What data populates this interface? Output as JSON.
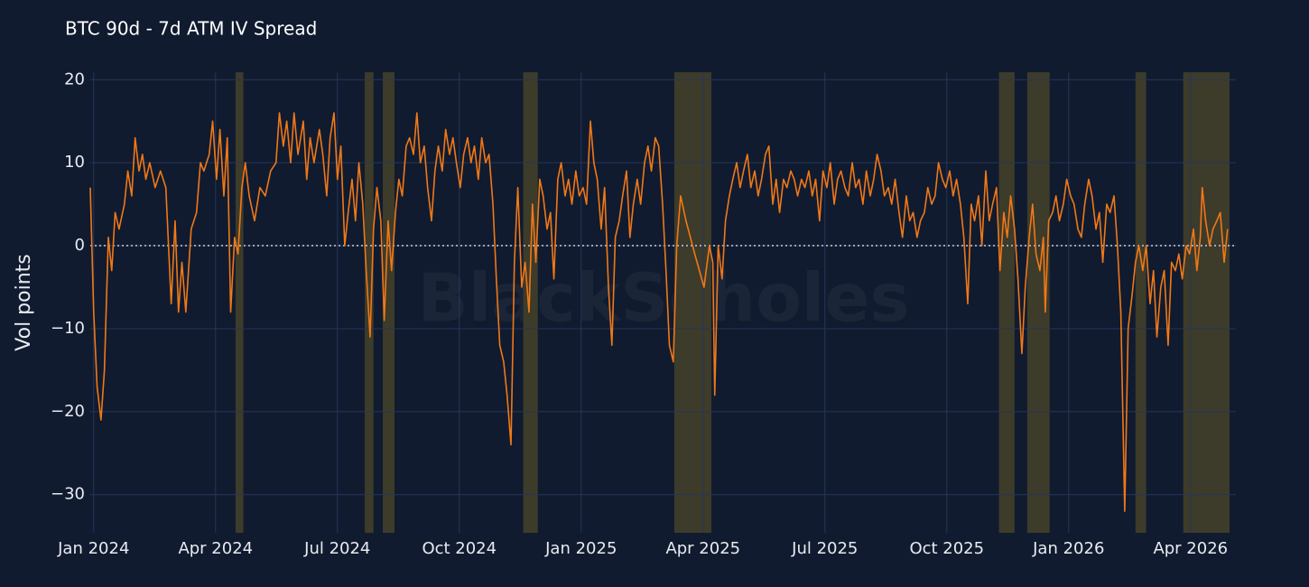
{
  "chart_data": {
    "type": "line",
    "title": "BTC 90d - 7d ATM IV Spread",
    "y_label": "Vol points",
    "watermark": "BlackScholes",
    "color": "#f07818",
    "band_color": "#3d3b2a",
    "grid": true,
    "zero_line": 0,
    "xlim": [
      2023.993,
      2026.343
    ],
    "ylim": [
      -34.6,
      20.9
    ],
    "xticks": [
      {
        "value": 2024,
        "label": "Jan 2024"
      },
      {
        "value": 2024.25,
        "label": "Apr 2024"
      },
      {
        "value": 2024.5,
        "label": "Jul 2024"
      },
      {
        "value": 2024.75,
        "label": "Oct 2024"
      },
      {
        "value": 2025,
        "label": "Jan 2025"
      },
      {
        "value": 2025.25,
        "label": "Apr 2025"
      },
      {
        "value": 2025.5,
        "label": "Jul 2025"
      },
      {
        "value": 2025.75,
        "label": "Oct 2025"
      },
      {
        "value": 2026,
        "label": "Jan 2026"
      },
      {
        "value": 2026.25,
        "label": "Apr 2026"
      }
    ],
    "yticks": [
      {
        "value": -30,
        "label": "−30"
      },
      {
        "value": -20,
        "label": "−20"
      },
      {
        "value": -10,
        "label": "−10"
      },
      0,
      10,
      20
    ],
    "shaded_ranges": [
      [
        2024.291,
        2024.307
      ],
      [
        2024.556,
        2024.574
      ],
      [
        2024.593,
        2024.617
      ],
      [
        2024.881,
        2024.911
      ],
      [
        2025.191,
        2025.267
      ],
      [
        2025.857,
        2025.889
      ],
      [
        2025.915,
        2025.961
      ],
      [
        2026.137,
        2026.159
      ],
      [
        2026.235,
        2026.33
      ]
    ],
    "x": [
      2023.993,
      2024.0,
      2024.007,
      2024.015,
      2024.022,
      2024.03,
      2024.037,
      2024.044,
      2024.052,
      2024.063,
      2024.07,
      2024.078,
      2024.085,
      2024.093,
      2024.1,
      2024.107,
      2024.115,
      2024.126,
      2024.137,
      2024.148,
      2024.159,
      2024.167,
      2024.174,
      2024.181,
      2024.189,
      2024.2,
      2024.211,
      2024.219,
      2024.226,
      2024.237,
      2024.244,
      2024.252,
      2024.259,
      2024.267,
      2024.274,
      2024.281,
      2024.289,
      2024.296,
      2024.304,
      2024.311,
      2024.319,
      2024.33,
      2024.341,
      2024.352,
      2024.363,
      2024.374,
      2024.381,
      2024.389,
      2024.396,
      2024.404,
      2024.411,
      2024.419,
      2024.43,
      2024.437,
      2024.444,
      2024.452,
      2024.463,
      2024.47,
      2024.478,
      2024.485,
      2024.493,
      2024.5,
      2024.507,
      2024.515,
      2024.522,
      2024.53,
      2024.537,
      2024.544,
      2024.552,
      2024.559,
      2024.567,
      2024.574,
      2024.581,
      2024.589,
      2024.596,
      2024.604,
      2024.611,
      2024.619,
      2024.626,
      2024.633,
      2024.641,
      2024.648,
      2024.656,
      2024.663,
      2024.67,
      2024.678,
      2024.685,
      2024.693,
      2024.7,
      2024.707,
      2024.715,
      2024.722,
      2024.73,
      2024.737,
      2024.744,
      2024.752,
      2024.759,
      2024.767,
      2024.774,
      2024.781,
      2024.789,
      2024.796,
      2024.804,
      2024.811,
      2024.819,
      2024.826,
      2024.833,
      2024.841,
      2024.848,
      2024.856,
      2024.863,
      2024.87,
      2024.878,
      2024.885,
      2024.893,
      2024.9,
      2024.907,
      2024.915,
      2024.922,
      2024.93,
      2024.937,
      2024.944,
      2024.952,
      2024.959,
      2024.967,
      2024.974,
      2024.981,
      2024.989,
      2024.996,
      2025.004,
      2025.011,
      2025.019,
      2025.026,
      2025.033,
      2025.041,
      2025.048,
      2025.056,
      2025.063,
      2025.07,
      2025.078,
      2025.085,
      2025.093,
      2025.1,
      2025.107,
      2025.115,
      2025.122,
      2025.13,
      2025.137,
      2025.144,
      2025.152,
      2025.159,
      2025.167,
      2025.174,
      2025.181,
      2025.189,
      2025.196,
      2025.204,
      2025.215,
      2025.233,
      2025.252,
      2025.263,
      2025.27,
      2025.274,
      2025.281,
      2025.289,
      2025.296,
      2025.304,
      2025.311,
      2025.319,
      2025.326,
      2025.333,
      2025.341,
      2025.348,
      2025.356,
      2025.363,
      2025.37,
      2025.378,
      2025.385,
      2025.393,
      2025.4,
      2025.407,
      2025.415,
      2025.422,
      2025.43,
      2025.437,
      2025.444,
      2025.452,
      2025.459,
      2025.467,
      2025.474,
      2025.481,
      2025.489,
      2025.496,
      2025.504,
      2025.511,
      2025.519,
      2025.526,
      2025.533,
      2025.541,
      2025.548,
      2025.556,
      2025.563,
      2025.57,
      2025.578,
      2025.585,
      2025.593,
      2025.6,
      2025.607,
      2025.615,
      2025.622,
      2025.63,
      2025.637,
      2025.644,
      2025.652,
      2025.659,
      2025.667,
      2025.674,
      2025.681,
      2025.689,
      2025.696,
      2025.704,
      2025.711,
      2025.719,
      2025.726,
      2025.733,
      2025.741,
      2025.748,
      2025.756,
      2025.763,
      2025.77,
      2025.778,
      2025.785,
      2025.793,
      2025.8,
      2025.807,
      2025.815,
      2025.822,
      2025.83,
      2025.837,
      2025.844,
      2025.852,
      2025.859,
      2025.867,
      2025.874,
      2025.881,
      2025.889,
      2025.896,
      2025.904,
      2025.911,
      2025.919,
      2025.926,
      2025.933,
      2025.941,
      2025.948,
      2025.952,
      2025.959,
      2025.967,
      2025.974,
      2025.981,
      2025.989,
      2025.996,
      2026.004,
      2026.011,
      2026.019,
      2026.026,
      2026.033,
      2026.041,
      2026.048,
      2026.056,
      2026.063,
      2026.07,
      2026.078,
      2026.085,
      2026.093,
      2026.1,
      2026.107,
      2026.115,
      2026.122,
      2026.13,
      2026.137,
      2026.144,
      2026.152,
      2026.159,
      2026.167,
      2026.174,
      2026.181,
      2026.189,
      2026.196,
      2026.204,
      2026.211,
      2026.219,
      2026.226,
      2026.233,
      2026.241,
      2026.248,
      2026.256,
      2026.263,
      2026.27,
      2026.274,
      2026.281,
      2026.289,
      2026.296,
      2026.304,
      2026.311,
      2026.319,
      2026.326
    ],
    "values": [
      7,
      -8,
      -17,
      -21,
      -15,
      1,
      -3,
      4,
      2,
      5,
      9,
      6,
      13,
      9,
      11,
      8,
      10,
      7,
      9,
      7,
      -7,
      3,
      -8,
      -2,
      -8,
      2,
      4,
      10,
      9,
      11,
      15,
      8,
      14,
      6,
      13,
      -8,
      1,
      -1,
      7,
      10,
      6,
      3,
      7,
      6,
      9,
      10,
      16,
      12,
      15,
      10,
      16,
      11,
      15,
      8,
      13,
      10,
      14,
      11,
      6,
      13,
      16,
      8,
      12,
      0,
      4,
      8,
      3,
      10,
      5,
      -3,
      -11,
      2,
      7,
      3,
      -9,
      3,
      -3,
      4,
      8,
      6,
      12,
      13,
      11,
      16,
      10,
      12,
      7,
      3,
      9,
      12,
      9,
      14,
      11,
      13,
      10,
      7,
      11,
      13,
      10,
      12,
      8,
      13,
      10,
      11,
      5,
      -4,
      -12,
      -14,
      -18,
      -24,
      -2,
      7,
      -5,
      -2,
      -8,
      5,
      -2,
      8,
      6,
      2,
      4,
      -4,
      8,
      10,
      6,
      8,
      5,
      9,
      6,
      7,
      5,
      15,
      10,
      8,
      2,
      7,
      -5,
      -12,
      1,
      3,
      6,
      9,
      1,
      5,
      8,
      5,
      10,
      12,
      9,
      13,
      12,
      5,
      -3,
      -12,
      -14,
      0,
      6,
      3,
      -1,
      -5,
      0,
      -2,
      -18,
      0,
      -4,
      3,
      6,
      8,
      10,
      7,
      9,
      11,
      7,
      9,
      6,
      8,
      11,
      12,
      5,
      8,
      4,
      8,
      7,
      9,
      8,
      6,
      8,
      7,
      9,
      6,
      8,
      3,
      9,
      7,
      10,
      5,
      8,
      9,
      7,
      6,
      10,
      7,
      8,
      5,
      9,
      6,
      8,
      11,
      9,
      6,
      7,
      5,
      8,
      4,
      1,
      6,
      3,
      4,
      1,
      3,
      4,
      7,
      5,
      6,
      10,
      8,
      7,
      9,
      6,
      8,
      5,
      1,
      -7,
      5,
      3,
      6,
      0,
      9,
      3,
      5,
      7,
      -3,
      4,
      1,
      6,
      2,
      -4,
      -13,
      -5,
      1,
      5,
      -1,
      -3,
      1,
      -8,
      3,
      4,
      6,
      3,
      5,
      8,
      6,
      5,
      2,
      1,
      5,
      8,
      6,
      2,
      4,
      -2,
      5,
      4,
      6,
      0,
      -8,
      -32,
      -10,
      -6,
      -2,
      0,
      -3,
      0,
      -7,
      -3,
      -11,
      -5,
      -3,
      -12,
      -2,
      -3,
      -1,
      -4,
      0,
      -1,
      2,
      -3,
      1,
      7,
      3,
      0,
      2,
      3,
      4,
      -2,
      2
    ]
  }
}
